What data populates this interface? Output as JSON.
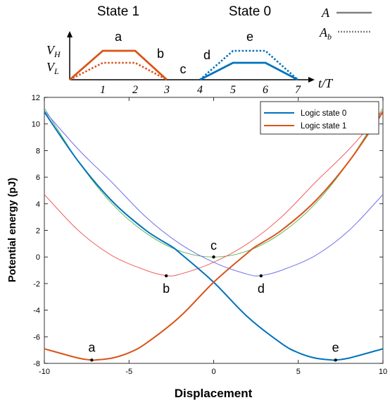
{
  "schematic": {
    "state_labels": [
      "State 1",
      "State 0"
    ],
    "y_labels": [
      "V_H",
      "V_L"
    ],
    "x_axis_label": "t/T",
    "x_ticks": [
      "1",
      "2",
      "3",
      "4",
      "5",
      "6",
      "7"
    ],
    "segment_labels": [
      "a",
      "b",
      "c",
      "d",
      "e"
    ],
    "legend": [
      {
        "label": "A",
        "style": "solid"
      },
      {
        "label": "A_b",
        "style": "dotted"
      }
    ],
    "colors": {
      "state1": "#d95319",
      "state0": "#0072bd",
      "legend": "#808080"
    }
  },
  "chart_data": {
    "type": "line",
    "title": "",
    "xlabel": "Displacement",
    "ylabel": "Potential energy (pJ)",
    "xlim": [
      -10,
      10
    ],
    "ylim": [
      -8,
      12
    ],
    "x_ticks": [
      "-10",
      "-5",
      "0",
      "5",
      "10"
    ],
    "y_ticks": [
      "-8",
      "-6",
      "-4",
      "-2",
      "0",
      "2",
      "4",
      "6",
      "8",
      "10",
      "12"
    ],
    "legend_position": "top-right",
    "series": [
      {
        "name": "Logic state 0",
        "color": "#0072bd",
        "x": [
          -10,
          -8,
          -6,
          -4,
          -2.5,
          -2,
          0,
          2,
          4,
          5,
          6,
          7,
          7.2,
          8,
          10
        ],
        "y": [
          10.9,
          7.2,
          4.2,
          2.0,
          0.8,
          0.3,
          -1.9,
          -4.5,
          -6.5,
          -7.2,
          -7.6,
          -7.75,
          -7.75,
          -7.6,
          -6.9
        ]
      },
      {
        "name": "Logic state 1",
        "color": "#d95319",
        "x": [
          -10,
          -8,
          -7.2,
          -7,
          -6,
          -5,
          -4,
          -2,
          0,
          2,
          2.5,
          4,
          6,
          8,
          10
        ],
        "y": [
          -6.9,
          -7.6,
          -7.75,
          -7.75,
          -7.6,
          -7.2,
          -6.5,
          -4.5,
          -1.9,
          0.3,
          0.8,
          2.0,
          4.2,
          7.2,
          10.9
        ]
      }
    ],
    "guide_curves": [
      {
        "color": "#5cb85c",
        "x": [
          -10,
          -8,
          -6,
          -4,
          -2,
          0,
          2,
          4,
          6,
          8,
          10
        ],
        "y": [
          11.2,
          7.2,
          4.0,
          1.8,
          0.45,
          0,
          0.45,
          1.8,
          4.0,
          7.2,
          11.2
        ]
      },
      {
        "color": "#f06060",
        "x": [
          -10,
          -8,
          -6,
          -4,
          -2.8,
          -2,
          0,
          2,
          4,
          6,
          8,
          10
        ],
        "y": [
          4.7,
          2.0,
          0.1,
          -1.0,
          -1.4,
          -1.3,
          -0.4,
          1.0,
          3.0,
          5.6,
          8.1,
          11.0
        ]
      },
      {
        "color": "#7070ee",
        "x": [
          -10,
          -8,
          -6,
          -4,
          -2,
          0,
          2,
          2.8,
          4,
          6,
          8,
          10
        ],
        "y": [
          11.0,
          8.1,
          5.6,
          3.0,
          1.0,
          -0.4,
          -1.3,
          -1.4,
          -1.0,
          0.1,
          2.0,
          4.7
        ]
      }
    ],
    "annotations": [
      {
        "label": "a",
        "x": -7.2,
        "y": -7.75
      },
      {
        "label": "b",
        "x": -2.8,
        "y": -1.42
      },
      {
        "label": "c",
        "x": 0,
        "y": 0
      },
      {
        "label": "d",
        "x": 2.8,
        "y": -1.42
      },
      {
        "label": "e",
        "x": 7.2,
        "y": -7.75
      }
    ]
  }
}
